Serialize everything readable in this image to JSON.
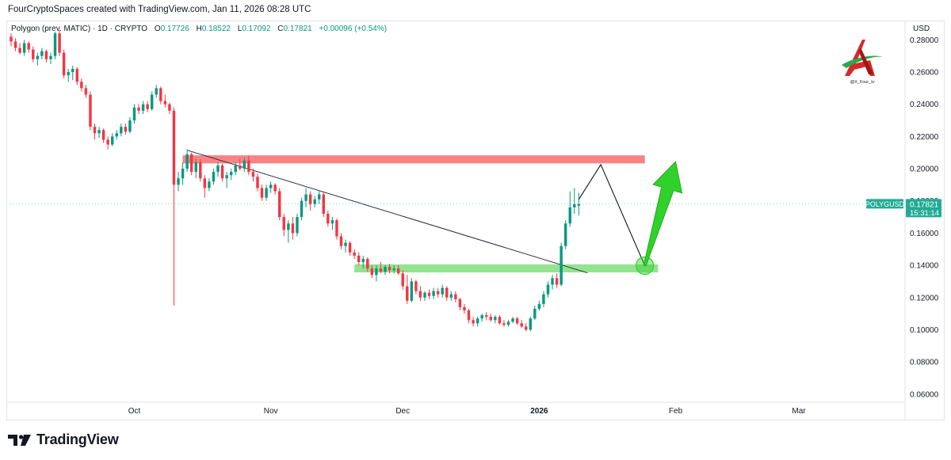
{
  "header": {
    "caption": "FourCryptoSpaces created with TradingView.com, Jan 11, 2026 08:28 UTC"
  },
  "legend": {
    "symbol": "Polygon (prev. MATIC) · 1D · CRYPTO",
    "open_label": "O",
    "open": "0.17726",
    "high_label": "H",
    "high": "0.18522",
    "low_label": "L",
    "low": "0.17092",
    "close_label": "C",
    "close": "0.17821",
    "change": "+0.00096 (+0.54%)"
  },
  "price_tag": {
    "symbol": "POLYGUSD",
    "price": "0.17821",
    "countdown": "15:31:14"
  },
  "watermark": {
    "handle": "@X_Four_tv"
  },
  "brand": {
    "name": "TradingView"
  },
  "colors": {
    "up": "#089981",
    "down": "#f23645",
    "resistance_zone": "#f77c80",
    "support_zone": "#8ee28a",
    "projection_arrow": "#2fd12a",
    "price_tag_bg": "#22ab94"
  },
  "chart_data": {
    "type": "candlestick",
    "currency": "USD",
    "y_ticks": [
      "0.28000",
      "0.26000",
      "0.24000",
      "0.22000",
      "0.20000",
      "0.18000",
      "0.16000",
      "0.14000",
      "0.12000",
      "0.10000",
      "0.08000",
      "0.06000"
    ],
    "ylim": [
      0.055,
      0.29
    ],
    "x_labels": [
      {
        "label": "Oct",
        "date": "2025-10-01"
      },
      {
        "label": "Nov",
        "date": "2025-11-01"
      },
      {
        "label": "Dec",
        "date": "2025-12-01"
      },
      {
        "label": "2026",
        "date": "2026-01-01"
      },
      {
        "label": "Feb",
        "date": "2026-02-01"
      },
      {
        "label": "Mar",
        "date": "2026-03-01"
      }
    ],
    "xlim": [
      "2025-09-03",
      "2026-03-10"
    ],
    "series": [
      {
        "d": "2025-09-03",
        "o": 0.282,
        "h": 0.284,
        "l": 0.276,
        "c": 0.279
      },
      {
        "d": "2025-09-04",
        "o": 0.279,
        "h": 0.281,
        "l": 0.273,
        "c": 0.275
      },
      {
        "d": "2025-09-05",
        "o": 0.275,
        "h": 0.278,
        "l": 0.271,
        "c": 0.272
      },
      {
        "d": "2025-09-06",
        "o": 0.272,
        "h": 0.28,
        "l": 0.27,
        "c": 0.278
      },
      {
        "d": "2025-09-07",
        "o": 0.278,
        "h": 0.279,
        "l": 0.272,
        "c": 0.274
      },
      {
        "d": "2025-09-08",
        "o": 0.274,
        "h": 0.276,
        "l": 0.266,
        "c": 0.268
      },
      {
        "d": "2025-09-09",
        "o": 0.268,
        "h": 0.272,
        "l": 0.264,
        "c": 0.27
      },
      {
        "d": "2025-09-10",
        "o": 0.27,
        "h": 0.275,
        "l": 0.268,
        "c": 0.273
      },
      {
        "d": "2025-09-11",
        "o": 0.273,
        "h": 0.274,
        "l": 0.266,
        "c": 0.268
      },
      {
        "d": "2025-09-12",
        "o": 0.268,
        "h": 0.272,
        "l": 0.265,
        "c": 0.27
      },
      {
        "d": "2025-09-13",
        "o": 0.27,
        "h": 0.285,
        "l": 0.268,
        "c": 0.284
      },
      {
        "d": "2025-09-14",
        "o": 0.284,
        "h": 0.286,
        "l": 0.27,
        "c": 0.272
      },
      {
        "d": "2025-09-15",
        "o": 0.272,
        "h": 0.274,
        "l": 0.256,
        "c": 0.258
      },
      {
        "d": "2025-09-16",
        "o": 0.258,
        "h": 0.262,
        "l": 0.254,
        "c": 0.26
      },
      {
        "d": "2025-09-17",
        "o": 0.26,
        "h": 0.264,
        "l": 0.255,
        "c": 0.262
      },
      {
        "d": "2025-09-18",
        "o": 0.262,
        "h": 0.263,
        "l": 0.252,
        "c": 0.254
      },
      {
        "d": "2025-09-19",
        "o": 0.254,
        "h": 0.256,
        "l": 0.248,
        "c": 0.25
      },
      {
        "d": "2025-09-20",
        "o": 0.25,
        "h": 0.252,
        "l": 0.244,
        "c": 0.246
      },
      {
        "d": "2025-09-21",
        "o": 0.246,
        "h": 0.248,
        "l": 0.224,
        "c": 0.226
      },
      {
        "d": "2025-09-22",
        "o": 0.226,
        "h": 0.228,
        "l": 0.218,
        "c": 0.222
      },
      {
        "d": "2025-09-23",
        "o": 0.222,
        "h": 0.226,
        "l": 0.219,
        "c": 0.224
      },
      {
        "d": "2025-09-24",
        "o": 0.224,
        "h": 0.225,
        "l": 0.216,
        "c": 0.218
      },
      {
        "d": "2025-09-25",
        "o": 0.218,
        "h": 0.22,
        "l": 0.212,
        "c": 0.215
      },
      {
        "d": "2025-09-26",
        "o": 0.215,
        "h": 0.222,
        "l": 0.214,
        "c": 0.22
      },
      {
        "d": "2025-09-27",
        "o": 0.22,
        "h": 0.224,
        "l": 0.218,
        "c": 0.222
      },
      {
        "d": "2025-09-28",
        "o": 0.222,
        "h": 0.228,
        "l": 0.22,
        "c": 0.226
      },
      {
        "d": "2025-09-29",
        "o": 0.226,
        "h": 0.228,
        "l": 0.221,
        "c": 0.223
      },
      {
        "d": "2025-09-30",
        "o": 0.223,
        "h": 0.232,
        "l": 0.222,
        "c": 0.23
      },
      {
        "d": "2025-10-01",
        "o": 0.23,
        "h": 0.24,
        "l": 0.228,
        "c": 0.238
      },
      {
        "d": "2025-10-02",
        "o": 0.238,
        "h": 0.24,
        "l": 0.234,
        "c": 0.236
      },
      {
        "d": "2025-10-03",
        "o": 0.236,
        "h": 0.242,
        "l": 0.234,
        "c": 0.24
      },
      {
        "d": "2025-10-04",
        "o": 0.24,
        "h": 0.242,
        "l": 0.235,
        "c": 0.237
      },
      {
        "d": "2025-10-05",
        "o": 0.237,
        "h": 0.248,
        "l": 0.236,
        "c": 0.246
      },
      {
        "d": "2025-10-06",
        "o": 0.246,
        "h": 0.252,
        "l": 0.244,
        "c": 0.25
      },
      {
        "d": "2025-10-07",
        "o": 0.25,
        "h": 0.251,
        "l": 0.24,
        "c": 0.242
      },
      {
        "d": "2025-10-08",
        "o": 0.242,
        "h": 0.246,
        "l": 0.238,
        "c": 0.24
      },
      {
        "d": "2025-10-09",
        "o": 0.24,
        "h": 0.241,
        "l": 0.234,
        "c": 0.236
      },
      {
        "d": "2025-10-10",
        "o": 0.236,
        "h": 0.238,
        "l": 0.115,
        "c": 0.19
      },
      {
        "d": "2025-10-11",
        "o": 0.19,
        "h": 0.198,
        "l": 0.186,
        "c": 0.194
      },
      {
        "d": "2025-10-12",
        "o": 0.194,
        "h": 0.204,
        "l": 0.19,
        "c": 0.2
      },
      {
        "d": "2025-10-13",
        "o": 0.2,
        "h": 0.212,
        "l": 0.198,
        "c": 0.209
      },
      {
        "d": "2025-10-14",
        "o": 0.209,
        "h": 0.21,
        "l": 0.196,
        "c": 0.198
      },
      {
        "d": "2025-10-15",
        "o": 0.198,
        "h": 0.206,
        "l": 0.194,
        "c": 0.204
      },
      {
        "d": "2025-10-16",
        "o": 0.204,
        "h": 0.206,
        "l": 0.192,
        "c": 0.194
      },
      {
        "d": "2025-10-17",
        "o": 0.194,
        "h": 0.196,
        "l": 0.182,
        "c": 0.188
      },
      {
        "d": "2025-10-18",
        "o": 0.188,
        "h": 0.194,
        "l": 0.186,
        "c": 0.192
      },
      {
        "d": "2025-10-19",
        "o": 0.192,
        "h": 0.2,
        "l": 0.19,
        "c": 0.198
      },
      {
        "d": "2025-10-20",
        "o": 0.198,
        "h": 0.204,
        "l": 0.195,
        "c": 0.202
      },
      {
        "d": "2025-10-21",
        "o": 0.202,
        "h": 0.203,
        "l": 0.192,
        "c": 0.194
      },
      {
        "d": "2025-10-22",
        "o": 0.194,
        "h": 0.198,
        "l": 0.188,
        "c": 0.196
      },
      {
        "d": "2025-10-23",
        "o": 0.196,
        "h": 0.2,
        "l": 0.193,
        "c": 0.198
      },
      {
        "d": "2025-10-24",
        "o": 0.198,
        "h": 0.204,
        "l": 0.196,
        "c": 0.202
      },
      {
        "d": "2025-10-25",
        "o": 0.202,
        "h": 0.206,
        "l": 0.199,
        "c": 0.2
      },
      {
        "d": "2025-10-26",
        "o": 0.2,
        "h": 0.207,
        "l": 0.198,
        "c": 0.205
      },
      {
        "d": "2025-10-27",
        "o": 0.205,
        "h": 0.208,
        "l": 0.196,
        "c": 0.198
      },
      {
        "d": "2025-10-28",
        "o": 0.198,
        "h": 0.2,
        "l": 0.192,
        "c": 0.195
      },
      {
        "d": "2025-10-29",
        "o": 0.195,
        "h": 0.197,
        "l": 0.186,
        "c": 0.188
      },
      {
        "d": "2025-10-30",
        "o": 0.188,
        "h": 0.19,
        "l": 0.18,
        "c": 0.182
      },
      {
        "d": "2025-10-31",
        "o": 0.182,
        "h": 0.19,
        "l": 0.18,
        "c": 0.188
      },
      {
        "d": "2025-11-01",
        "o": 0.188,
        "h": 0.192,
        "l": 0.185,
        "c": 0.19
      },
      {
        "d": "2025-11-02",
        "o": 0.19,
        "h": 0.191,
        "l": 0.184,
        "c": 0.186
      },
      {
        "d": "2025-11-03",
        "o": 0.186,
        "h": 0.188,
        "l": 0.168,
        "c": 0.17
      },
      {
        "d": "2025-11-04",
        "o": 0.17,
        "h": 0.172,
        "l": 0.158,
        "c": 0.162
      },
      {
        "d": "2025-11-05",
        "o": 0.162,
        "h": 0.168,
        "l": 0.154,
        "c": 0.166
      },
      {
        "d": "2025-11-06",
        "o": 0.166,
        "h": 0.17,
        "l": 0.156,
        "c": 0.16
      },
      {
        "d": "2025-11-07",
        "o": 0.16,
        "h": 0.172,
        "l": 0.158,
        "c": 0.17
      },
      {
        "d": "2025-11-08",
        "o": 0.17,
        "h": 0.182,
        "l": 0.168,
        "c": 0.18
      },
      {
        "d": "2025-11-09",
        "o": 0.18,
        "h": 0.188,
        "l": 0.176,
        "c": 0.184
      },
      {
        "d": "2025-11-10",
        "o": 0.184,
        "h": 0.186,
        "l": 0.174,
        "c": 0.178
      },
      {
        "d": "2025-11-11",
        "o": 0.178,
        "h": 0.183,
        "l": 0.176,
        "c": 0.181
      },
      {
        "d": "2025-11-12",
        "o": 0.181,
        "h": 0.186,
        "l": 0.178,
        "c": 0.184
      },
      {
        "d": "2025-11-13",
        "o": 0.184,
        "h": 0.186,
        "l": 0.17,
        "c": 0.172
      },
      {
        "d": "2025-11-14",
        "o": 0.172,
        "h": 0.174,
        "l": 0.164,
        "c": 0.166
      },
      {
        "d": "2025-11-15",
        "o": 0.166,
        "h": 0.17,
        "l": 0.162,
        "c": 0.168
      },
      {
        "d": "2025-11-16",
        "o": 0.168,
        "h": 0.169,
        "l": 0.156,
        "c": 0.158
      },
      {
        "d": "2025-11-17",
        "o": 0.158,
        "h": 0.16,
        "l": 0.15,
        "c": 0.152
      },
      {
        "d": "2025-11-18",
        "o": 0.152,
        "h": 0.156,
        "l": 0.148,
        "c": 0.154
      },
      {
        "d": "2025-11-19",
        "o": 0.154,
        "h": 0.155,
        "l": 0.146,
        "c": 0.148
      },
      {
        "d": "2025-11-20",
        "o": 0.148,
        "h": 0.15,
        "l": 0.144,
        "c": 0.146
      },
      {
        "d": "2025-11-21",
        "o": 0.146,
        "h": 0.148,
        "l": 0.14,
        "c": 0.142
      },
      {
        "d": "2025-11-22",
        "o": 0.142,
        "h": 0.146,
        "l": 0.138,
        "c": 0.144
      },
      {
        "d": "2025-11-23",
        "o": 0.144,
        "h": 0.145,
        "l": 0.136,
        "c": 0.138
      },
      {
        "d": "2025-11-24",
        "o": 0.138,
        "h": 0.14,
        "l": 0.132,
        "c": 0.134
      },
      {
        "d": "2025-11-25",
        "o": 0.134,
        "h": 0.14,
        "l": 0.13,
        "c": 0.138
      },
      {
        "d": "2025-11-26",
        "o": 0.138,
        "h": 0.142,
        "l": 0.135,
        "c": 0.136
      },
      {
        "d": "2025-11-27",
        "o": 0.136,
        "h": 0.14,
        "l": 0.134,
        "c": 0.139
      },
      {
        "d": "2025-11-28",
        "o": 0.139,
        "h": 0.141,
        "l": 0.135,
        "c": 0.137
      },
      {
        "d": "2025-11-29",
        "o": 0.137,
        "h": 0.14,
        "l": 0.135,
        "c": 0.138
      },
      {
        "d": "2025-11-30",
        "o": 0.138,
        "h": 0.14,
        "l": 0.134,
        "c": 0.135
      },
      {
        "d": "2025-12-01",
        "o": 0.135,
        "h": 0.137,
        "l": 0.125,
        "c": 0.127
      },
      {
        "d": "2025-12-02",
        "o": 0.127,
        "h": 0.134,
        "l": 0.116,
        "c": 0.118
      },
      {
        "d": "2025-12-03",
        "o": 0.118,
        "h": 0.132,
        "l": 0.117,
        "c": 0.13
      },
      {
        "d": "2025-12-04",
        "o": 0.13,
        "h": 0.131,
        "l": 0.122,
        "c": 0.124
      },
      {
        "d": "2025-12-05",
        "o": 0.124,
        "h": 0.127,
        "l": 0.118,
        "c": 0.12
      },
      {
        "d": "2025-12-06",
        "o": 0.12,
        "h": 0.124,
        "l": 0.118,
        "c": 0.123
      },
      {
        "d": "2025-12-07",
        "o": 0.123,
        "h": 0.125,
        "l": 0.119,
        "c": 0.121
      },
      {
        "d": "2025-12-08",
        "o": 0.121,
        "h": 0.126,
        "l": 0.119,
        "c": 0.124
      },
      {
        "d": "2025-12-09",
        "o": 0.124,
        "h": 0.126,
        "l": 0.12,
        "c": 0.122
      },
      {
        "d": "2025-12-10",
        "o": 0.122,
        "h": 0.128,
        "l": 0.12,
        "c": 0.126
      },
      {
        "d": "2025-12-11",
        "o": 0.126,
        "h": 0.127,
        "l": 0.118,
        "c": 0.12
      },
      {
        "d": "2025-12-12",
        "o": 0.12,
        "h": 0.124,
        "l": 0.118,
        "c": 0.122
      },
      {
        "d": "2025-12-13",
        "o": 0.122,
        "h": 0.124,
        "l": 0.117,
        "c": 0.119
      },
      {
        "d": "2025-12-14",
        "o": 0.119,
        "h": 0.12,
        "l": 0.112,
        "c": 0.114
      },
      {
        "d": "2025-12-15",
        "o": 0.114,
        "h": 0.116,
        "l": 0.11,
        "c": 0.112
      },
      {
        "d": "2025-12-16",
        "o": 0.112,
        "h": 0.113,
        "l": 0.104,
        "c": 0.106
      },
      {
        "d": "2025-12-17",
        "o": 0.106,
        "h": 0.108,
        "l": 0.102,
        "c": 0.104
      },
      {
        "d": "2025-12-18",
        "o": 0.104,
        "h": 0.108,
        "l": 0.102,
        "c": 0.107
      },
      {
        "d": "2025-12-19",
        "o": 0.107,
        "h": 0.11,
        "l": 0.105,
        "c": 0.109
      },
      {
        "d": "2025-12-20",
        "o": 0.109,
        "h": 0.111,
        "l": 0.106,
        "c": 0.108
      },
      {
        "d": "2025-12-21",
        "o": 0.108,
        "h": 0.11,
        "l": 0.105,
        "c": 0.106
      },
      {
        "d": "2025-12-22",
        "o": 0.106,
        "h": 0.109,
        "l": 0.104,
        "c": 0.108
      },
      {
        "d": "2025-12-23",
        "o": 0.108,
        "h": 0.109,
        "l": 0.103,
        "c": 0.104
      },
      {
        "d": "2025-12-24",
        "o": 0.104,
        "h": 0.106,
        "l": 0.102,
        "c": 0.103
      },
      {
        "d": "2025-12-25",
        "o": 0.103,
        "h": 0.106,
        "l": 0.102,
        "c": 0.105
      },
      {
        "d": "2025-12-26",
        "o": 0.105,
        "h": 0.108,
        "l": 0.104,
        "c": 0.107
      },
      {
        "d": "2025-12-27",
        "o": 0.107,
        "h": 0.108,
        "l": 0.103,
        "c": 0.104
      },
      {
        "d": "2025-12-28",
        "o": 0.104,
        "h": 0.106,
        "l": 0.101,
        "c": 0.102
      },
      {
        "d": "2025-12-29",
        "o": 0.102,
        "h": 0.104,
        "l": 0.099,
        "c": 0.1
      },
      {
        "d": "2025-12-30",
        "o": 0.1,
        "h": 0.108,
        "l": 0.099,
        "c": 0.107
      },
      {
        "d": "2025-12-31",
        "o": 0.107,
        "h": 0.115,
        "l": 0.106,
        "c": 0.113
      },
      {
        "d": "2026-01-01",
        "o": 0.113,
        "h": 0.118,
        "l": 0.112,
        "c": 0.116
      },
      {
        "d": "2026-01-02",
        "o": 0.116,
        "h": 0.124,
        "l": 0.114,
        "c": 0.122
      },
      {
        "d": "2026-01-03",
        "o": 0.122,
        "h": 0.13,
        "l": 0.12,
        "c": 0.128
      },
      {
        "d": "2026-01-04",
        "o": 0.128,
        "h": 0.134,
        "l": 0.125,
        "c": 0.132
      },
      {
        "d": "2026-01-05",
        "o": 0.132,
        "h": 0.135,
        "l": 0.126,
        "c": 0.128
      },
      {
        "d": "2026-01-06",
        "o": 0.128,
        "h": 0.154,
        "l": 0.127,
        "c": 0.152
      },
      {
        "d": "2026-01-07",
        "o": 0.152,
        "h": 0.168,
        "l": 0.15,
        "c": 0.166
      },
      {
        "d": "2026-01-08",
        "o": 0.166,
        "h": 0.186,
        "l": 0.164,
        "c": 0.176
      },
      {
        "d": "2026-01-09",
        "o": 0.176,
        "h": 0.188,
        "l": 0.172,
        "c": 0.178
      },
      {
        "d": "2026-01-10",
        "o": 0.177,
        "h": 0.185,
        "l": 0.171,
        "c": 0.178
      }
    ],
    "zones": [
      {
        "name": "resistance",
        "from": "2025-10-12",
        "to": "2026-01-25",
        "y_low": 0.2033,
        "y_high": 0.2083
      },
      {
        "name": "support",
        "from": "2025-11-20",
        "to": "2026-01-28",
        "y_low": 0.1356,
        "y_high": 0.1406
      }
    ],
    "trendline": [
      {
        "d": "2025-10-13",
        "y": 0.2115
      },
      {
        "d": "2026-01-12",
        "y": 0.1353
      }
    ],
    "projection_path": [
      {
        "d": "2026-01-10",
        "y": 0.181
      },
      {
        "d": "2026-01-15",
        "y": 0.2025
      },
      {
        "d": "2026-01-25",
        "y": 0.1398
      }
    ],
    "target_circle": {
      "d": "2026-01-25",
      "y": 0.1398
    },
    "arrow": [
      {
        "d": "2026-01-25",
        "y": 0.1398
      },
      {
        "d": "2026-02-01",
        "y": 0.2045
      }
    ]
  }
}
